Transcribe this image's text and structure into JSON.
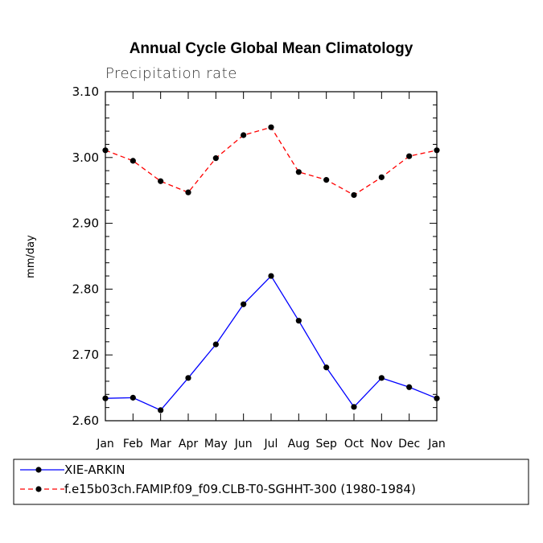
{
  "chart_data": {
    "type": "line",
    "title": "Annual Cycle Global Mean Climatology",
    "subtitle": "Precipitation rate",
    "ylabel": "mm/day",
    "xlabel": "",
    "categories": [
      "Jan",
      "Feb",
      "Mar",
      "Apr",
      "May",
      "Jun",
      "Jul",
      "Aug",
      "Sep",
      "Oct",
      "Nov",
      "Dec",
      "Jan"
    ],
    "ylim": [
      2.6,
      3.1
    ],
    "yticks": [
      "3.10",
      "3.00",
      "2.90",
      "2.80",
      "2.70",
      "2.60"
    ],
    "ytick_values": [
      3.1,
      3.0,
      2.9,
      2.8,
      2.7,
      2.6
    ],
    "grid": false,
    "legend_position": "bottom",
    "series": [
      {
        "name": "XIE-ARKIN",
        "color": "#0000ff",
        "dash": "solid",
        "values": [
          2.634,
          2.635,
          2.616,
          2.665,
          2.716,
          2.777,
          2.82,
          2.752,
          2.681,
          2.621,
          2.665,
          2.651,
          2.634
        ]
      },
      {
        "name": "f.e15b03ch.FAMIP.f09_f09.CLB-T0-SGHHT-300 (1980-1984)",
        "color": "#ff0000",
        "dash": "dashed",
        "values": [
          3.011,
          2.995,
          2.964,
          2.947,
          2.999,
          3.034,
          3.046,
          2.978,
          2.966,
          2.943,
          2.97,
          3.002,
          3.011
        ]
      }
    ]
  }
}
